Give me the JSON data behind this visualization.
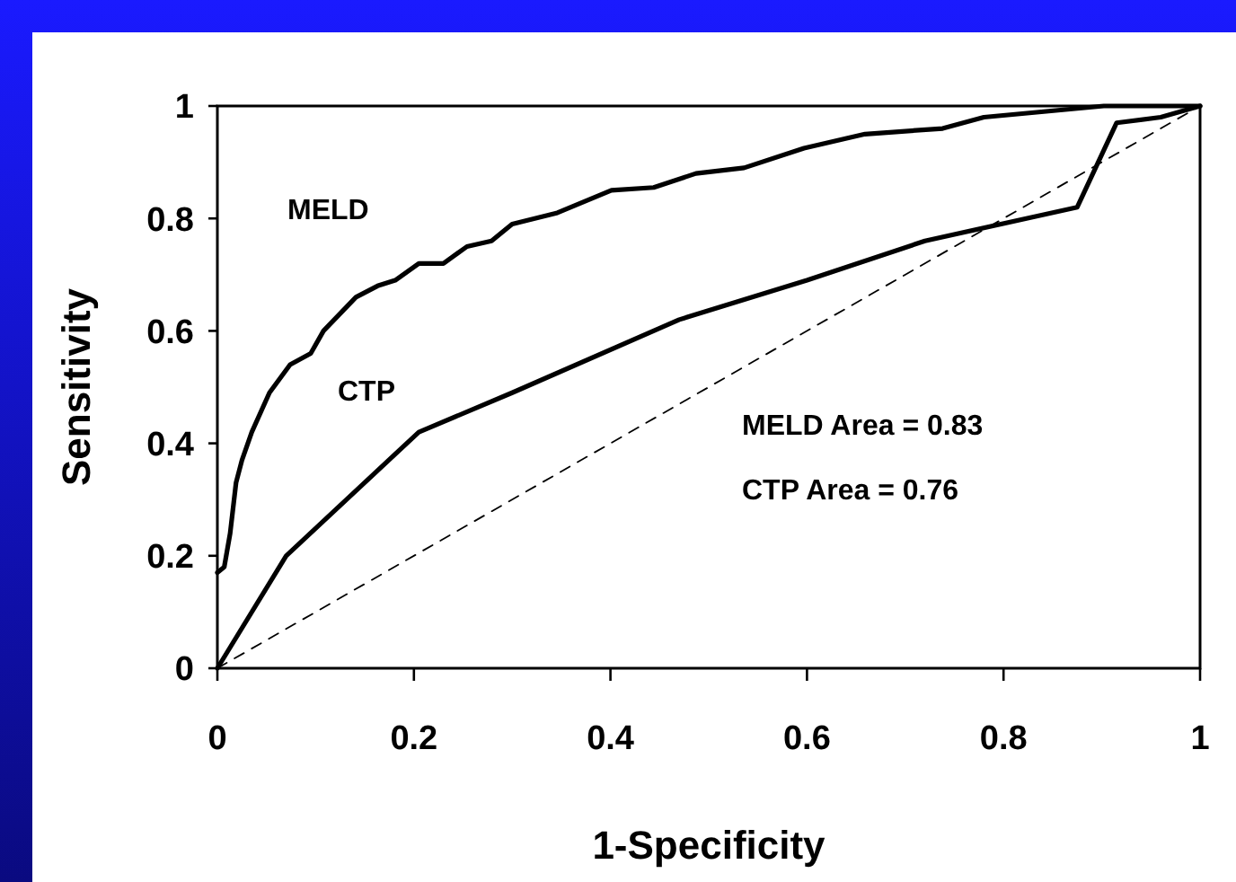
{
  "chart_data": {
    "type": "line",
    "xlabel": "1-Specificity",
    "ylabel": "Sensitivity",
    "xlim": [
      0,
      1
    ],
    "ylim": [
      0,
      1
    ],
    "xticks": [
      0,
      0.2,
      0.4,
      0.6,
      0.8,
      1
    ],
    "yticks": [
      0,
      0.2,
      0.4,
      0.6,
      0.8,
      1
    ],
    "marker": "none",
    "series": [
      {
        "name": "MELD",
        "color": "#000000",
        "line_style": "solid",
        "x": [
          0,
          0.007,
          0.013,
          0.019,
          0.025,
          0.035,
          0.053,
          0.074,
          0.095,
          0.108,
          0.141,
          0.163,
          0.181,
          0.205,
          0.23,
          0.254,
          0.279,
          0.3,
          0.346,
          0.401,
          0.444,
          0.487,
          0.536,
          0.597,
          0.659,
          0.738,
          0.78,
          0.841,
          0.902,
          1
        ],
        "values": [
          0.17,
          0.18,
          0.24,
          0.33,
          0.37,
          0.42,
          0.49,
          0.54,
          0.56,
          0.6,
          0.66,
          0.68,
          0.69,
          0.72,
          0.72,
          0.75,
          0.76,
          0.79,
          0.81,
          0.85,
          0.855,
          0.88,
          0.89,
          0.925,
          0.95,
          0.96,
          0.98,
          0.99,
          1,
          1
        ]
      },
      {
        "name": "CTP",
        "color": "#000000",
        "line_style": "solid",
        "x": [
          0,
          0.07,
          0.205,
          0.3,
          0.47,
          0.6,
          0.72,
          0.875,
          0.915,
          0.96,
          1
        ],
        "values": [
          0,
          0.2,
          0.42,
          0.49,
          0.62,
          0.69,
          0.76,
          0.82,
          0.97,
          0.98,
          1
        ]
      },
      {
        "color": "#000000",
        "line_style": "dashed",
        "x": [
          0,
          1
        ],
        "values": [
          0,
          1
        ]
      }
    ],
    "annotations": [
      "MELD Area = 0.83",
      "CTP Area = 0.76"
    ]
  }
}
